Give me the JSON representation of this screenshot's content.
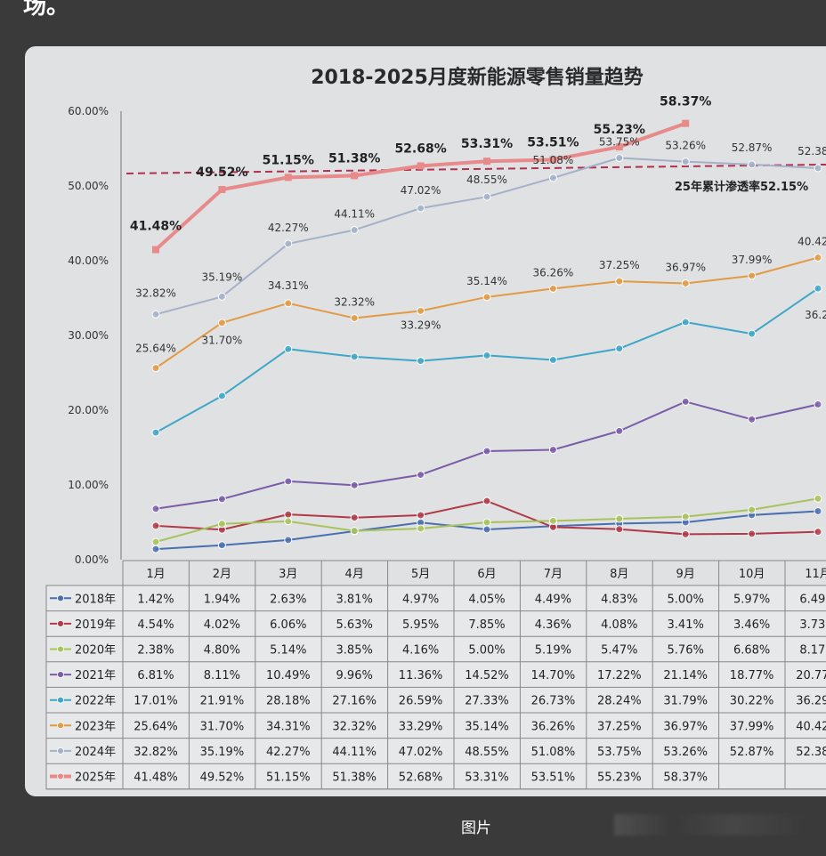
{
  "page": {
    "cut_text": "场。",
    "caption": "图片"
  },
  "chart_data": {
    "type": "line",
    "title": "2018-2025月度新能源零售销量趋势",
    "categories": [
      "1月",
      "2月",
      "3月",
      "4月",
      "5月",
      "6月",
      "7月",
      "8月",
      "9月",
      "10月",
      "11月"
    ],
    "ylim": [
      0,
      60
    ],
    "yticks": [
      "0.00%",
      "10.00%",
      "20.00%",
      "30.00%",
      "40.00%",
      "50.00%",
      "60.00%"
    ],
    "grid": false,
    "legend": "table-below",
    "series": [
      {
        "name": "2018年",
        "color": "#4a6fb0",
        "values": [
          1.42,
          1.94,
          2.63,
          3.81,
          4.97,
          4.05,
          4.49,
          4.83,
          5.0,
          5.97,
          6.49
        ]
      },
      {
        "name": "2019年",
        "color": "#b23a48",
        "values": [
          4.54,
          4.02,
          6.06,
          5.63,
          5.95,
          7.85,
          4.36,
          4.08,
          3.41,
          3.46,
          3.73
        ]
      },
      {
        "name": "2020年",
        "color": "#a9c35c",
        "values": [
          2.38,
          4.8,
          5.14,
          3.85,
          4.16,
          5.0,
          5.19,
          5.47,
          5.76,
          6.68,
          8.17
        ]
      },
      {
        "name": "2021年",
        "color": "#7a5ca8",
        "values": [
          6.81,
          8.11,
          10.49,
          9.96,
          11.36,
          14.52,
          14.7,
          17.22,
          21.14,
          18.77,
          20.77
        ]
      },
      {
        "name": "2022年",
        "color": "#3fa6c8",
        "values": [
          17.01,
          21.91,
          28.18,
          27.16,
          26.59,
          27.33,
          26.73,
          28.24,
          31.79,
          30.22,
          36.29
        ]
      },
      {
        "name": "2023年",
        "color": "#e39a45",
        "values": [
          25.64,
          31.7,
          34.31,
          32.32,
          33.29,
          35.14,
          36.26,
          37.25,
          36.97,
          37.99,
          40.42
        ]
      },
      {
        "name": "2024年",
        "color": "#a5b1c9",
        "values": [
          32.82,
          35.19,
          42.27,
          44.11,
          47.02,
          48.55,
          51.08,
          53.75,
          53.26,
          52.87,
          52.38
        ]
      },
      {
        "name": "2025年",
        "color": "#e88a8a",
        "values": [
          41.48,
          49.52,
          51.15,
          51.38,
          52.68,
          53.31,
          53.51,
          55.23,
          58.37,
          null,
          null
        ]
      }
    ],
    "reference_line": {
      "value": 52.15,
      "label": "25年累计渗透率52.15%",
      "color": "#b03050"
    }
  }
}
